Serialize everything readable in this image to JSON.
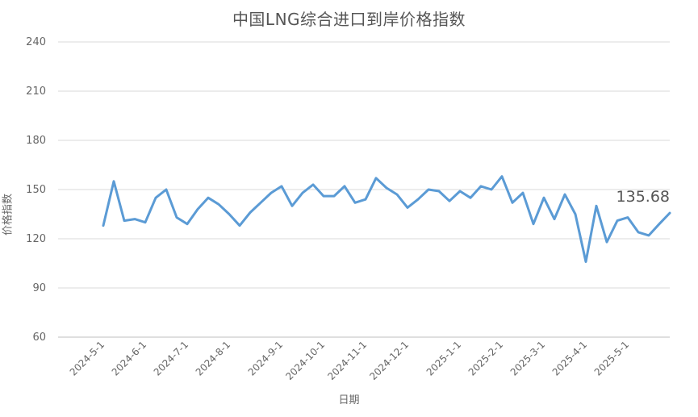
{
  "chart_data": {
    "type": "line",
    "title": "中国LNG综合进口到岸价格指数",
    "xlabel": "日期",
    "ylabel": "价格指数",
    "ylim": [
      60,
      240
    ],
    "yticks": [
      60,
      90,
      120,
      150,
      180,
      210,
      240
    ],
    "grid": "horizontal",
    "line_color": "#5b9bd5",
    "xticks": [
      {
        "label": "2024-5-1",
        "index": 0
      },
      {
        "label": "2024-6-1",
        "index": 4
      },
      {
        "label": "2024-7-1",
        "index": 8
      },
      {
        "label": "2024-8-1",
        "index": 12
      },
      {
        "label": "2024-9-1",
        "index": 17
      },
      {
        "label": "2024-10-1",
        "index": 21
      },
      {
        "label": "2024-11-1",
        "index": 25
      },
      {
        "label": "2024-12-1",
        "index": 29
      },
      {
        "label": "2025-1-1",
        "index": 34
      },
      {
        "label": "2025-2-1",
        "index": 38
      },
      {
        "label": "2025-3-1",
        "index": 42
      },
      {
        "label": "2025-4-1",
        "index": 46
      },
      {
        "label": "2025-5-1",
        "index": 50
      }
    ],
    "series": [
      {
        "values": [
          128,
          155,
          131,
          132,
          130,
          145,
          150,
          133,
          129,
          138,
          145,
          141,
          135,
          128,
          136,
          142,
          148,
          152,
          140,
          148,
          153,
          146,
          146,
          152,
          142,
          144,
          157,
          151,
          147,
          139,
          144,
          150,
          149,
          143,
          149,
          145,
          152,
          150,
          158,
          142,
          148,
          129,
          145,
          132,
          147,
          135,
          106,
          140,
          118,
          131,
          133,
          124,
          122,
          129,
          135.68
        ]
      }
    ],
    "annotations": [
      {
        "text": "135.68",
        "index": 54
      }
    ]
  }
}
